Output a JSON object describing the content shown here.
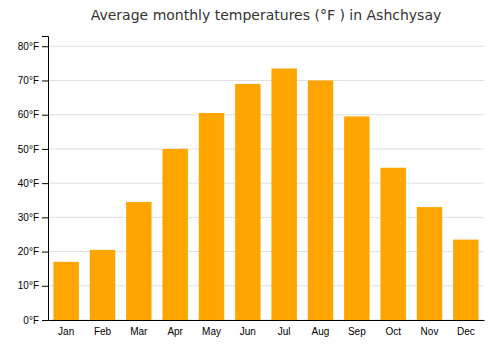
{
  "chart_data": {
    "type": "bar",
    "title": "Average monthly temperatures (°F ) in Ashchysay",
    "categories": [
      "Jan",
      "Feb",
      "Mar",
      "Apr",
      "May",
      "Jun",
      "Jul",
      "Aug",
      "Sep",
      "Oct",
      "Nov",
      "Dec"
    ],
    "values": [
      17,
      20.5,
      34.5,
      50,
      60.5,
      69,
      73.5,
      70,
      59.5,
      44.5,
      33,
      23.5
    ],
    "color": "#FFA500",
    "ylim": [
      0,
      83
    ],
    "yticks": [
      {
        "value": 0,
        "label": "0°F"
      },
      {
        "value": 10,
        "label": "10°F"
      },
      {
        "value": 20,
        "label": "20°F"
      },
      {
        "value": 30,
        "label": "30°F"
      },
      {
        "value": 40,
        "label": "40°F"
      },
      {
        "value": 50,
        "label": "50°F"
      },
      {
        "value": 60,
        "label": "60°F"
      },
      {
        "value": 70,
        "label": "70°F"
      },
      {
        "value": 80,
        "label": "80°F"
      }
    ],
    "grid": true
  }
}
